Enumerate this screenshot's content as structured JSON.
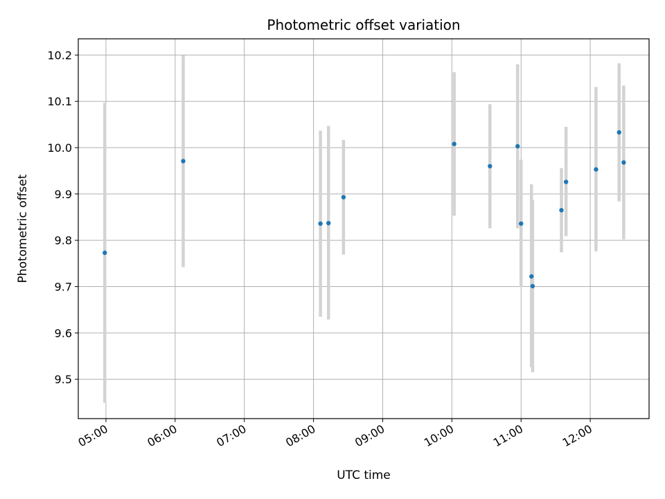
{
  "chart_data": {
    "type": "scatter",
    "title": "Photometric offset variation",
    "xlabel": "UTC time",
    "ylabel": "Photometric offset",
    "x_unit": "UTC time (HH:MM)",
    "xlim": [
      "04:36",
      "12:51"
    ],
    "ylim": [
      9.415,
      10.235
    ],
    "x_ticks": [
      "05:00",
      "06:00",
      "07:00",
      "08:00",
      "09:00",
      "10:00",
      "11:00",
      "12:00"
    ],
    "y_ticks": [
      9.5,
      9.6,
      9.7,
      9.8,
      9.9,
      10.0,
      10.1,
      10.2
    ],
    "y_tick_labels": [
      "9.5",
      "9.6",
      "9.7",
      "9.8",
      "9.9",
      "10.0",
      "10.1",
      "10.2"
    ],
    "grid": true,
    "colors": {
      "points": "#1f77b4",
      "errorbars": "#d3d3d3",
      "grid": "#b0b0b0"
    },
    "points": [
      {
        "x": "04:59",
        "y": 9.773,
        "ylow": 9.449,
        "yhigh": 10.097
      },
      {
        "x": "06:07",
        "y": 9.971,
        "ylow": 9.742,
        "yhigh": 10.199
      },
      {
        "x": "08:06",
        "y": 9.836,
        "ylow": 9.635,
        "yhigh": 10.037
      },
      {
        "x": "08:13",
        "y": 9.837,
        "ylow": 9.629,
        "yhigh": 10.047
      },
      {
        "x": "08:26",
        "y": 9.893,
        "ylow": 9.769,
        "yhigh": 10.017
      },
      {
        "x": "10:02",
        "y": 10.008,
        "ylow": 9.853,
        "yhigh": 10.163
      },
      {
        "x": "10:33",
        "y": 9.96,
        "ylow": 9.826,
        "yhigh": 10.094
      },
      {
        "x": "10:57",
        "y": 10.003,
        "ylow": 9.826,
        "yhigh": 10.18
      },
      {
        "x": "11:00",
        "y": 9.836,
        "ylow": 9.699,
        "yhigh": 9.974
      },
      {
        "x": "11:09",
        "y": 9.722,
        "ylow": 9.526,
        "yhigh": 9.921
      },
      {
        "x": "11:10",
        "y": 9.701,
        "ylow": 9.515,
        "yhigh": 9.887
      },
      {
        "x": "11:35",
        "y": 9.865,
        "ylow": 9.774,
        "yhigh": 9.956
      },
      {
        "x": "11:39",
        "y": 9.926,
        "ylow": 9.809,
        "yhigh": 10.045
      },
      {
        "x": "12:05",
        "y": 9.953,
        "ylow": 9.776,
        "yhigh": 10.131
      },
      {
        "x": "12:25",
        "y": 10.033,
        "ylow": 9.884,
        "yhigh": 10.182
      },
      {
        "x": "12:29",
        "y": 9.968,
        "ylow": 9.802,
        "yhigh": 10.134
      }
    ]
  }
}
